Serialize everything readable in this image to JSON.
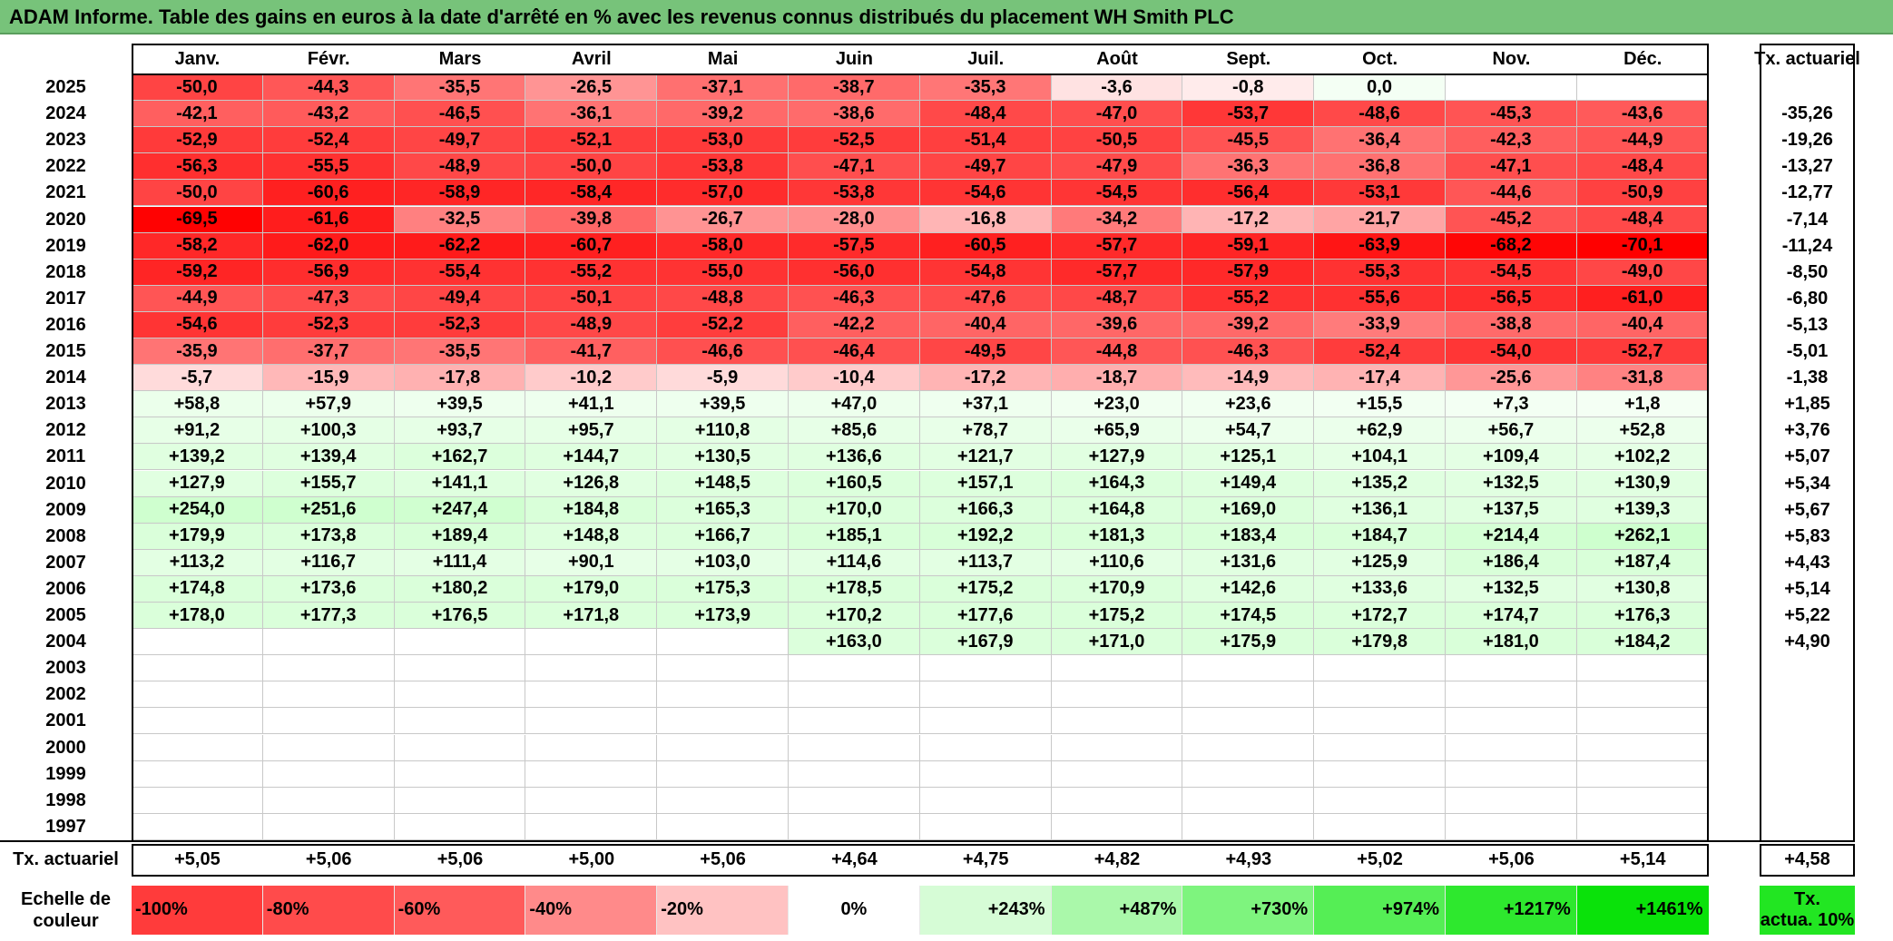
{
  "title": "ADAM Informe. Table des gains en euros à la date d'arrêté en % avec les revenus connus distribués du placement WH Smith PLC",
  "months": [
    "Janv.",
    "Févr.",
    "Mars",
    "Avril",
    "Mai",
    "Juin",
    "Juil.",
    "Août",
    "Sept.",
    "Oct.",
    "Nov.",
    "Déc."
  ],
  "rate_header": "Tx. actuariel",
  "rows": [
    {
      "year": "2025",
      "values": [
        "-50,0",
        "-44,3",
        "-35,5",
        "-26,5",
        "-37,1",
        "-38,7",
        "-35,3",
        "-3,6",
        "-0,8",
        "0,0",
        "",
        ""
      ],
      "rate": ""
    },
    {
      "year": "2024",
      "values": [
        "-42,1",
        "-43,2",
        "-46,5",
        "-36,1",
        "-39,2",
        "-38,6",
        "-48,4",
        "-47,0",
        "-53,7",
        "-48,6",
        "-45,3",
        "-43,6"
      ],
      "rate": "-35,26"
    },
    {
      "year": "2023",
      "values": [
        "-52,9",
        "-52,4",
        "-49,7",
        "-52,1",
        "-53,0",
        "-52,5",
        "-51,4",
        "-50,5",
        "-45,5",
        "-36,4",
        "-42,3",
        "-44,9"
      ],
      "rate": "-19,26"
    },
    {
      "year": "2022",
      "values": [
        "-56,3",
        "-55,5",
        "-48,9",
        "-50,0",
        "-53,8",
        "-47,1",
        "-49,7",
        "-47,9",
        "-36,3",
        "-36,8",
        "-47,1",
        "-48,4"
      ],
      "rate": "-13,27"
    },
    {
      "year": "2021",
      "values": [
        "-50,0",
        "-60,6",
        "-58,9",
        "-58,4",
        "-57,0",
        "-53,8",
        "-54,6",
        "-54,5",
        "-56,4",
        "-53,1",
        "-44,6",
        "-50,9"
      ],
      "rate": "-12,77"
    },
    {
      "year": "2020",
      "values": [
        "-69,5",
        "-61,6",
        "-32,5",
        "-39,8",
        "-26,7",
        "-28,0",
        "-16,8",
        "-34,2",
        "-17,2",
        "-21,7",
        "-45,2",
        "-48,4"
      ],
      "rate": "-7,14"
    },
    {
      "year": "2019",
      "values": [
        "-58,2",
        "-62,0",
        "-62,2",
        "-60,7",
        "-58,0",
        "-57,5",
        "-60,5",
        "-57,7",
        "-59,1",
        "-63,9",
        "-68,2",
        "-70,1"
      ],
      "rate": "-11,24"
    },
    {
      "year": "2018",
      "values": [
        "-59,2",
        "-56,9",
        "-55,4",
        "-55,2",
        "-55,0",
        "-56,0",
        "-54,8",
        "-57,7",
        "-57,9",
        "-55,3",
        "-54,5",
        "-49,0"
      ],
      "rate": "-8,50"
    },
    {
      "year": "2017",
      "values": [
        "-44,9",
        "-47,3",
        "-49,4",
        "-50,1",
        "-48,8",
        "-46,3",
        "-47,6",
        "-48,7",
        "-55,2",
        "-55,6",
        "-56,5",
        "-61,0"
      ],
      "rate": "-6,80"
    },
    {
      "year": "2016",
      "values": [
        "-54,6",
        "-52,3",
        "-52,3",
        "-48,9",
        "-52,2",
        "-42,2",
        "-40,4",
        "-39,6",
        "-39,2",
        "-33,9",
        "-38,8",
        "-40,4"
      ],
      "rate": "-5,13"
    },
    {
      "year": "2015",
      "values": [
        "-35,9",
        "-37,7",
        "-35,5",
        "-41,7",
        "-46,6",
        "-46,4",
        "-49,5",
        "-44,8",
        "-46,3",
        "-52,4",
        "-54,0",
        "-52,7"
      ],
      "rate": "-5,01"
    },
    {
      "year": "2014",
      "values": [
        "-5,7",
        "-15,9",
        "-17,8",
        "-10,2",
        "-5,9",
        "-10,4",
        "-17,2",
        "-18,7",
        "-14,9",
        "-17,4",
        "-25,6",
        "-31,8"
      ],
      "rate": "-1,38"
    },
    {
      "year": "2013",
      "values": [
        "+58,8",
        "+57,9",
        "+39,5",
        "+41,1",
        "+39,5",
        "+47,0",
        "+37,1",
        "+23,0",
        "+23,6",
        "+15,5",
        "+7,3",
        "+1,8"
      ],
      "rate": "+1,85"
    },
    {
      "year": "2012",
      "values": [
        "+91,2",
        "+100,3",
        "+93,7",
        "+95,7",
        "+110,8",
        "+85,6",
        "+78,7",
        "+65,9",
        "+54,7",
        "+62,9",
        "+56,7",
        "+52,8"
      ],
      "rate": "+3,76"
    },
    {
      "year": "2011",
      "values": [
        "+139,2",
        "+139,4",
        "+162,7",
        "+144,7",
        "+130,5",
        "+136,6",
        "+121,7",
        "+127,9",
        "+125,1",
        "+104,1",
        "+109,4",
        "+102,2"
      ],
      "rate": "+5,07"
    },
    {
      "year": "2010",
      "values": [
        "+127,9",
        "+155,7",
        "+141,1",
        "+126,8",
        "+148,5",
        "+160,5",
        "+157,1",
        "+164,3",
        "+149,4",
        "+135,2",
        "+132,5",
        "+130,9"
      ],
      "rate": "+5,34"
    },
    {
      "year": "2009",
      "values": [
        "+254,0",
        "+251,6",
        "+247,4",
        "+184,8",
        "+165,3",
        "+170,0",
        "+166,3",
        "+164,8",
        "+169,0",
        "+136,1",
        "+137,5",
        "+139,3"
      ],
      "rate": "+5,67"
    },
    {
      "year": "2008",
      "values": [
        "+179,9",
        "+173,8",
        "+189,4",
        "+148,8",
        "+166,7",
        "+185,1",
        "+192,2",
        "+181,3",
        "+183,4",
        "+184,7",
        "+214,4",
        "+262,1"
      ],
      "rate": "+5,83"
    },
    {
      "year": "2007",
      "values": [
        "+113,2",
        "+116,7",
        "+111,4",
        "+90,1",
        "+103,0",
        "+114,6",
        "+113,7",
        "+110,6",
        "+131,6",
        "+125,9",
        "+186,4",
        "+187,4"
      ],
      "rate": "+4,43"
    },
    {
      "year": "2006",
      "values": [
        "+174,8",
        "+173,6",
        "+180,2",
        "+179,0",
        "+175,3",
        "+178,5",
        "+175,2",
        "+170,9",
        "+142,6",
        "+133,6",
        "+132,5",
        "+130,8"
      ],
      "rate": "+5,14"
    },
    {
      "year": "2005",
      "values": [
        "+178,0",
        "+177,3",
        "+176,5",
        "+171,8",
        "+173,9",
        "+170,2",
        "+177,6",
        "+175,2",
        "+174,5",
        "+172,7",
        "+174,7",
        "+176,3"
      ],
      "rate": "+5,22"
    },
    {
      "year": "2004",
      "values": [
        "",
        "",
        "",
        "",
        "",
        "+163,0",
        "+167,9",
        "+171,0",
        "+175,9",
        "+179,8",
        "+181,0",
        "+184,2"
      ],
      "rate": "+4,90"
    },
    {
      "year": "2003",
      "values": [
        "",
        "",
        "",
        "",
        "",
        "",
        "",
        "",
        "",
        "",
        "",
        ""
      ],
      "rate": ""
    },
    {
      "year": "2002",
      "values": [
        "",
        "",
        "",
        "",
        "",
        "",
        "",
        "",
        "",
        "",
        "",
        ""
      ],
      "rate": ""
    },
    {
      "year": "2001",
      "values": [
        "",
        "",
        "",
        "",
        "",
        "",
        "",
        "",
        "",
        "",
        "",
        ""
      ],
      "rate": ""
    },
    {
      "year": "2000",
      "values": [
        "",
        "",
        "",
        "",
        "",
        "",
        "",
        "",
        "",
        "",
        "",
        ""
      ],
      "rate": ""
    },
    {
      "year": "1999",
      "values": [
        "",
        "",
        "",
        "",
        "",
        "",
        "",
        "",
        "",
        "",
        "",
        ""
      ],
      "rate": ""
    },
    {
      "year": "1998",
      "values": [
        "",
        "",
        "",
        "",
        "",
        "",
        "",
        "",
        "",
        "",
        "",
        ""
      ],
      "rate": ""
    },
    {
      "year": "1997",
      "values": [
        "",
        "",
        "",
        "",
        "",
        "",
        "",
        "",
        "",
        "",
        "",
        ""
      ],
      "rate": ""
    }
  ],
  "footer": {
    "label": "Tx. actuariel",
    "values": [
      "+5,05",
      "+5,06",
      "+5,06",
      "+5,00",
      "+5,06",
      "+4,64",
      "+4,75",
      "+4,82",
      "+4,93",
      "+5,02",
      "+5,06",
      "+5,14"
    ],
    "total": "+4,58"
  },
  "scale": {
    "label_line1": "Echelle de",
    "label_line2": "couleur",
    "items": [
      {
        "text": "-100%",
        "color": "#ff3b3b"
      },
      {
        "text": "-80%",
        "color": "#ff4b4b"
      },
      {
        "text": "-60%",
        "color": "#ff5a5a"
      },
      {
        "text": "-40%",
        "color": "#ff8a8a"
      },
      {
        "text": "-20%",
        "color": "#ffc2c2"
      },
      {
        "text": "0%",
        "color": "#ffffff"
      },
      {
        "text": "+243%",
        "color": "#d6fcd6"
      },
      {
        "text": "+487%",
        "color": "#aaf8aa"
      },
      {
        "text": "+730%",
        "color": "#7ef47e"
      },
      {
        "text": "+974%",
        "color": "#55ee55"
      },
      {
        "text": "+1217%",
        "color": "#2ee82e"
      },
      {
        "text": "+1461%",
        "color": "#0ae20a"
      }
    ],
    "rate_label_line1": "Tx.",
    "rate_label_line2": "actua. 10%",
    "rate_color": "#22e622"
  }
}
